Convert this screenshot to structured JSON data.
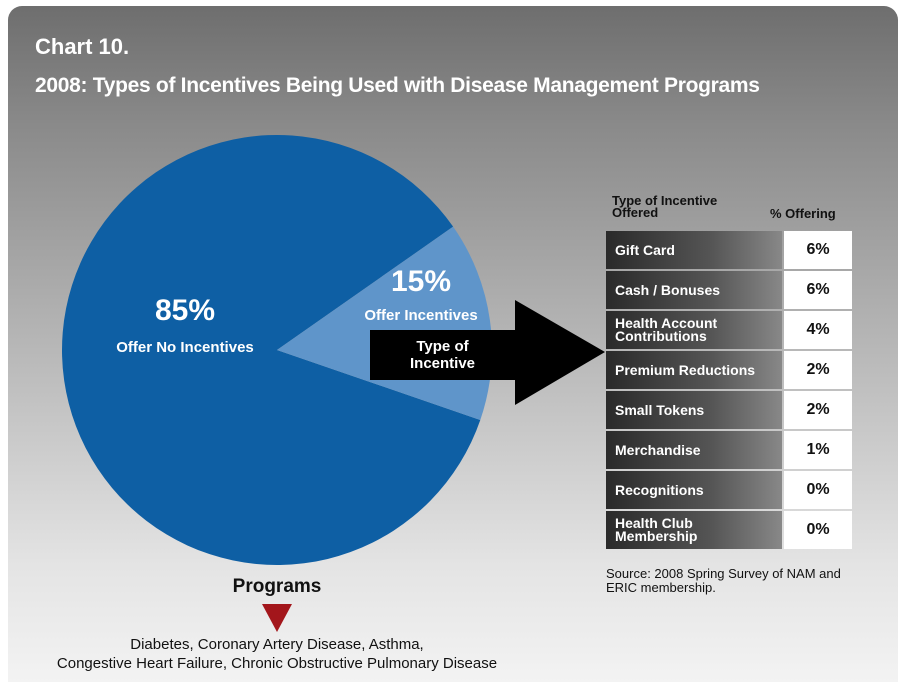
{
  "chart_data": {
    "type": "pie",
    "title": "Chart 10.",
    "subtitle": "2008: Types of Incentives Being Used with Disease Management Programs",
    "categories": [
      "Offer No Incentives",
      "Offer Incentives"
    ],
    "values": [
      85,
      15
    ],
    "value_labels": [
      "85%",
      "15%"
    ],
    "colors": [
      "#0e5fa4",
      "#5f95ca"
    ],
    "arrow_label": "Type of Incentive",
    "programs_label": "Programs",
    "programs": [
      "Diabetes, Coronary Artery Disease, Asthma,",
      "Congestive Heart Failure, Chronic Obstructive Pulmonary Disease"
    ],
    "source": "Source: 2008 Spring Survey of NAM and ERIC membership."
  },
  "table": {
    "headers": [
      "Type of Incentive Offered",
      "% Offering"
    ],
    "rows": [
      [
        "Gift Card",
        "6%"
      ],
      [
        "Cash / Bonuses",
        "6%"
      ],
      [
        "Health Account Contributions",
        "4%"
      ],
      [
        "Premium Reductions",
        "2%"
      ],
      [
        "Small Tokens",
        "2%"
      ],
      [
        "Merchandise",
        "1%"
      ],
      [
        "Recognitions",
        "0%"
      ],
      [
        "Health Club Membership",
        "0%"
      ]
    ]
  }
}
